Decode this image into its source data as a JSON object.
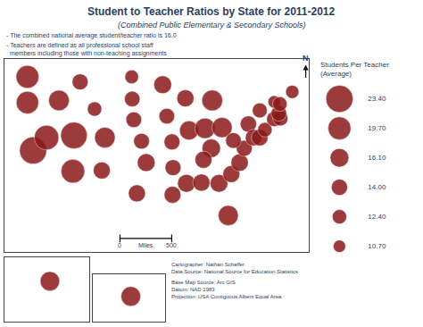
{
  "chart_data": [
    {
      "type": "bubble_map",
      "title": "Student to Teacher Ratios by State for 2011-2012",
      "subtitle": "(Combined Public Elementary & Secondary Schools)",
      "annotations": [
        "- The combined national average student/teacher ratio is 16.0",
        "- Teachers are defined as all professional school staff\n  members including those with non-teaching assignments",
        "N",
        "0",
        "Miles",
        "500",
        "Cartographer: Nathan Schaffer\nData Source: National Source for Education Statistics",
        "Base Map Source: Arc GIS\nDatum: NAD 1983\nProjection: USA Contiguous Albers Equal Area"
      ],
      "x": [
        -120.5,
        -120.5,
        -119.4,
        -114.4,
        -116.8,
        -110.3,
        -107.5,
        -111.5,
        -111.7,
        -105.5,
        -106.1,
        -100.3,
        -100.2,
        -99.9,
        -98.4,
        -97.5,
        -99.3,
        -94.3,
        -93.5,
        -92.5,
        -92.3,
        -92.4,
        -89.9,
        -89.2,
        -89.7,
        -84.7,
        -86.1,
        -82.8,
        -84.9,
        -86.4,
        -86.8,
        -83.4,
        -81.6,
        -81.0,
        -79.4,
        -78.5,
        -80.6,
        -77.7,
        -75.5,
        -76.7,
        -75.5,
        -74.5,
        -72.7,
        -71.5,
        -71.8,
        -72.7,
        -71.6,
        -69.2
      ],
      "values": [
        47.5,
        43.9,
        37.2,
        44.2,
        39.0,
        46.8,
        43.0,
        39.3,
        34.3,
        39.0,
        34.4,
        47.5,
        44.4,
        41.5,
        38.5,
        35.5,
        31.2,
        46.4,
        42.0,
        38.4,
        34.8,
        31.0,
        44.5,
        40.0,
        32.6,
        44.2,
        40.3,
        40.4,
        37.5,
        35.9,
        32.7,
        32.6,
        28.1,
        33.9,
        35.5,
        37.5,
        38.6,
        40.9,
        42.8,
        39.0,
        39.0,
        40.1,
        41.6,
        41.7,
        42.4,
        44.0,
        43.7,
        45.4
      ],
      "size": [
        19.7,
        19.4,
        23.4,
        17.7,
        21.2,
        13.8,
        12.4,
        22.9,
        20.4,
        17.7,
        14.7,
        11.8,
        13.4,
        13.6,
        13.6,
        15.4,
        14.7,
        15.4,
        13.5,
        13.8,
        13.8,
        14.5,
        14.8,
        16.4,
        15.4,
        17.9,
        17.6,
        17.4,
        16.0,
        14.8,
        14.8,
        15.3,
        17.3,
        14.7,
        15.0,
        13.8,
        13.5,
        14.1,
        12.9,
        14.2,
        14.3,
        12.5,
        13.1,
        13.1,
        13.4,
        10.7,
        12.5,
        11.4
      ],
      "xlim": [
        -125,
        -66
      ],
      "ylim": [
        23,
        50
      ],
      "tick_labels": false,
      "grid": false,
      "color": "#8b1a1a"
    },
    {
      "type": "bubble_map",
      "x": [
        -153.0
      ],
      "values": [
        64.2
      ],
      "size": [
        16.7
      ],
      "xlim": [
        -180,
        -130
      ],
      "ylim": [
        51,
        72
      ],
      "tick_labels": false,
      "grid": false,
      "color": "#8b1a1a"
    },
    {
      "type": "bubble_map",
      "x": [
        -157.8
      ],
      "values": [
        20.9
      ],
      "size": [
        16.9
      ],
      "xlim": [
        -162,
        -154
      ],
      "ylim": [
        18.5,
        23
      ],
      "tick_labels": false,
      "grid": false,
      "color": "#8b1a1a"
    },
    {
      "type": "size_legend",
      "title": "Students Per Teacher\n(Average)",
      "values": [
        23.4,
        19.7,
        16.1,
        14.0,
        12.4,
        10.7
      ],
      "value_labels": [
        "23.40",
        "19.70",
        "16.10",
        "14.00",
        "12.40",
        "10.70"
      ],
      "color": "#8b1a1a"
    }
  ]
}
